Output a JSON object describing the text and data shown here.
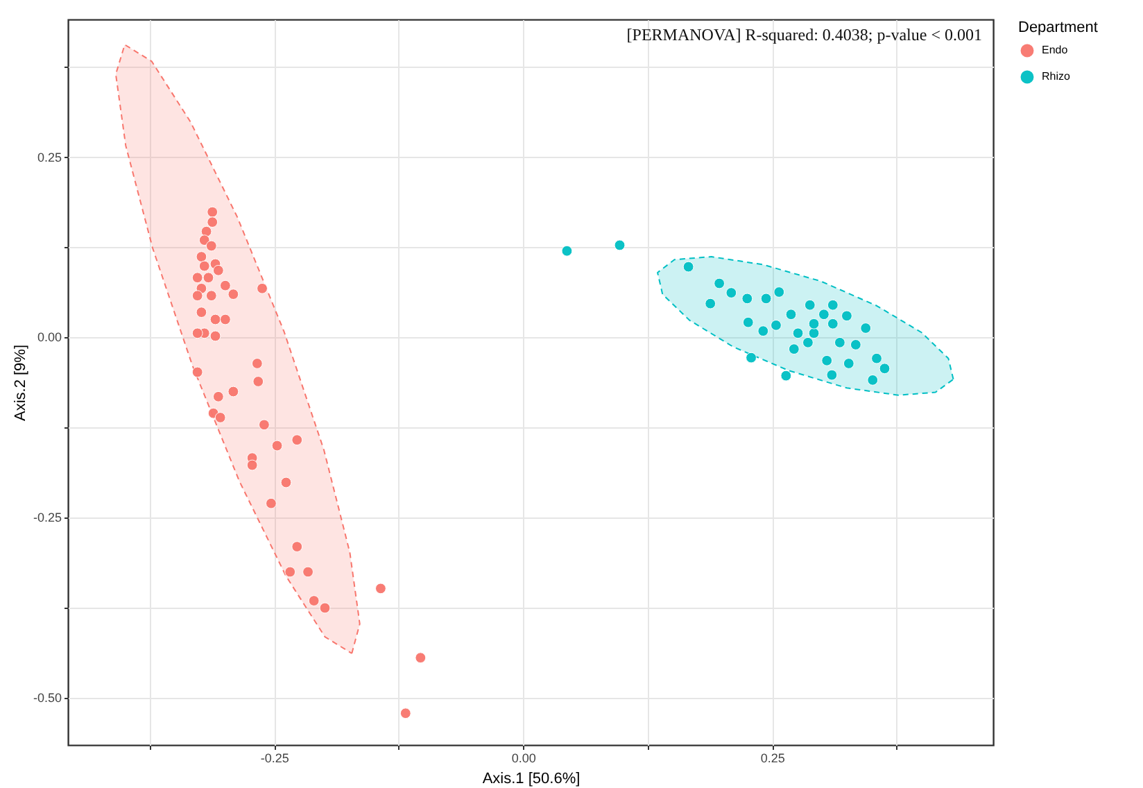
{
  "chart_data": {
    "type": "scatter",
    "xlabel": "Axis.1   [50.6%]",
    "ylabel": "Axis.2   [9%]",
    "legend_title": "Department",
    "legend": "right",
    "grid": true,
    "annotations": [
      "[PERMANOVA] R-squared: 0.4038; p-value < 0.001"
    ],
    "xlim": [
      -0.457,
      0.472
    ],
    "ylim": [
      -0.566,
      0.44
    ],
    "xticks": [
      {
        "value": -0.375,
        "label": null
      },
      {
        "value": -0.25,
        "label": "-0.25"
      },
      {
        "value": -0.125,
        "label": null
      },
      {
        "value": 0,
        "label": "0.00"
      },
      {
        "value": 0.125,
        "label": null
      },
      {
        "value": 0.25,
        "label": "0.25"
      },
      {
        "value": 0.375,
        "label": null
      }
    ],
    "yticks": [
      {
        "value": -0.5,
        "label": "-0.50"
      },
      {
        "value": -0.375,
        "label": null
      },
      {
        "value": -0.25,
        "label": "-0.25"
      },
      {
        "value": -0.125,
        "label": null
      },
      {
        "value": 0,
        "label": "0.00"
      },
      {
        "value": 0.125,
        "label": null
      },
      {
        "value": 0.25,
        "label": "0.25"
      },
      {
        "value": 0.375,
        "label": null
      }
    ],
    "series": [
      {
        "type": "area",
        "line_style": "dashed",
        "color": "#f8766d",
        "x": [
          -0.172,
          -0.164,
          -0.174,
          -0.2,
          -0.24,
          -0.287,
          -0.334,
          -0.373,
          -0.4,
          -0.409,
          -0.399,
          -0.372,
          -0.332,
          -0.285,
          -0.238,
          -0.199,
          -0.172
        ],
        "values": [
          -0.439,
          -0.398,
          -0.299,
          -0.157,
          0.007,
          0.166,
          0.298,
          0.382,
          0.405,
          0.364,
          0.265,
          0.123,
          -0.04,
          -0.2,
          -0.332,
          -0.416,
          -0.439
        ]
      },
      {
        "type": "area",
        "line_style": "dashed",
        "color": "#00bfc4",
        "x": [
          0.432,
          0.427,
          0.4,
          0.355,
          0.299,
          0.241,
          0.189,
          0.152,
          0.135,
          0.14,
          0.167,
          0.211,
          0.267,
          0.325,
          0.377,
          0.414,
          0.432
        ],
        "values": [
          -0.059,
          -0.03,
          0.006,
          0.043,
          0.077,
          0.1,
          0.111,
          0.107,
          0.089,
          0.059,
          0.023,
          -0.014,
          -0.047,
          -0.071,
          -0.081,
          -0.077,
          -0.059
        ]
      },
      {
        "type": "scatter",
        "marker": "circle",
        "name": "Endo",
        "color": "#f8766d",
        "x": [
          -0.312,
          -0.312,
          -0.318,
          -0.32,
          -0.313,
          -0.323,
          -0.32,
          -0.309,
          -0.327,
          -0.316,
          -0.306,
          -0.323,
          -0.313,
          -0.327,
          -0.299,
          -0.323,
          -0.309,
          -0.299,
          -0.32,
          -0.309,
          -0.327,
          -0.291,
          -0.262,
          -0.327,
          -0.267,
          -0.266,
          -0.306,
          -0.291,
          -0.311,
          -0.304,
          -0.26,
          -0.247,
          -0.227,
          -0.272,
          -0.272,
          -0.238,
          -0.253,
          -0.227,
          -0.234,
          -0.216,
          -0.21,
          -0.199,
          -0.143,
          -0.103,
          -0.118
        ],
        "values": [
          0.173,
          0.159,
          0.146,
          0.134,
          0.126,
          0.111,
          0.098,
          0.101,
          0.082,
          0.082,
          0.092,
          0.067,
          0.057,
          0.057,
          0.071,
          0.034,
          0.024,
          0.024,
          0.005,
          0.001,
          0.005,
          0.059,
          0.067,
          -0.049,
          -0.037,
          -0.062,
          -0.083,
          -0.076,
          -0.106,
          -0.112,
          -0.122,
          -0.151,
          -0.143,
          -0.168,
          -0.178,
          -0.202,
          -0.231,
          -0.291,
          -0.326,
          -0.326,
          -0.366,
          -0.376,
          -0.349,
          -0.445,
          -0.522
        ]
      },
      {
        "type": "scatter",
        "marker": "circle",
        "name": "Rhizo",
        "color": "#00bfc4",
        "x": [
          0.044,
          0.097,
          0.166,
          0.197,
          0.209,
          0.188,
          0.225,
          0.244,
          0.257,
          0.226,
          0.241,
          0.254,
          0.269,
          0.288,
          0.302,
          0.311,
          0.325,
          0.344,
          0.276,
          0.292,
          0.272,
          0.286,
          0.318,
          0.334,
          0.305,
          0.327,
          0.355,
          0.363,
          0.351,
          0.31,
          0.229,
          0.264,
          0.292,
          0.311
        ],
        "values": [
          0.119,
          0.127,
          0.097,
          0.074,
          0.061,
          0.046,
          0.053,
          0.053,
          0.062,
          0.02,
          0.008,
          0.016,
          0.031,
          0.044,
          0.031,
          0.018,
          0.029,
          0.012,
          0.005,
          0.005,
          -0.017,
          -0.008,
          -0.008,
          -0.011,
          -0.033,
          -0.037,
          -0.03,
          -0.044,
          -0.06,
          -0.053,
          -0.029,
          -0.054,
          0.018,
          0.044
        ]
      }
    ]
  }
}
